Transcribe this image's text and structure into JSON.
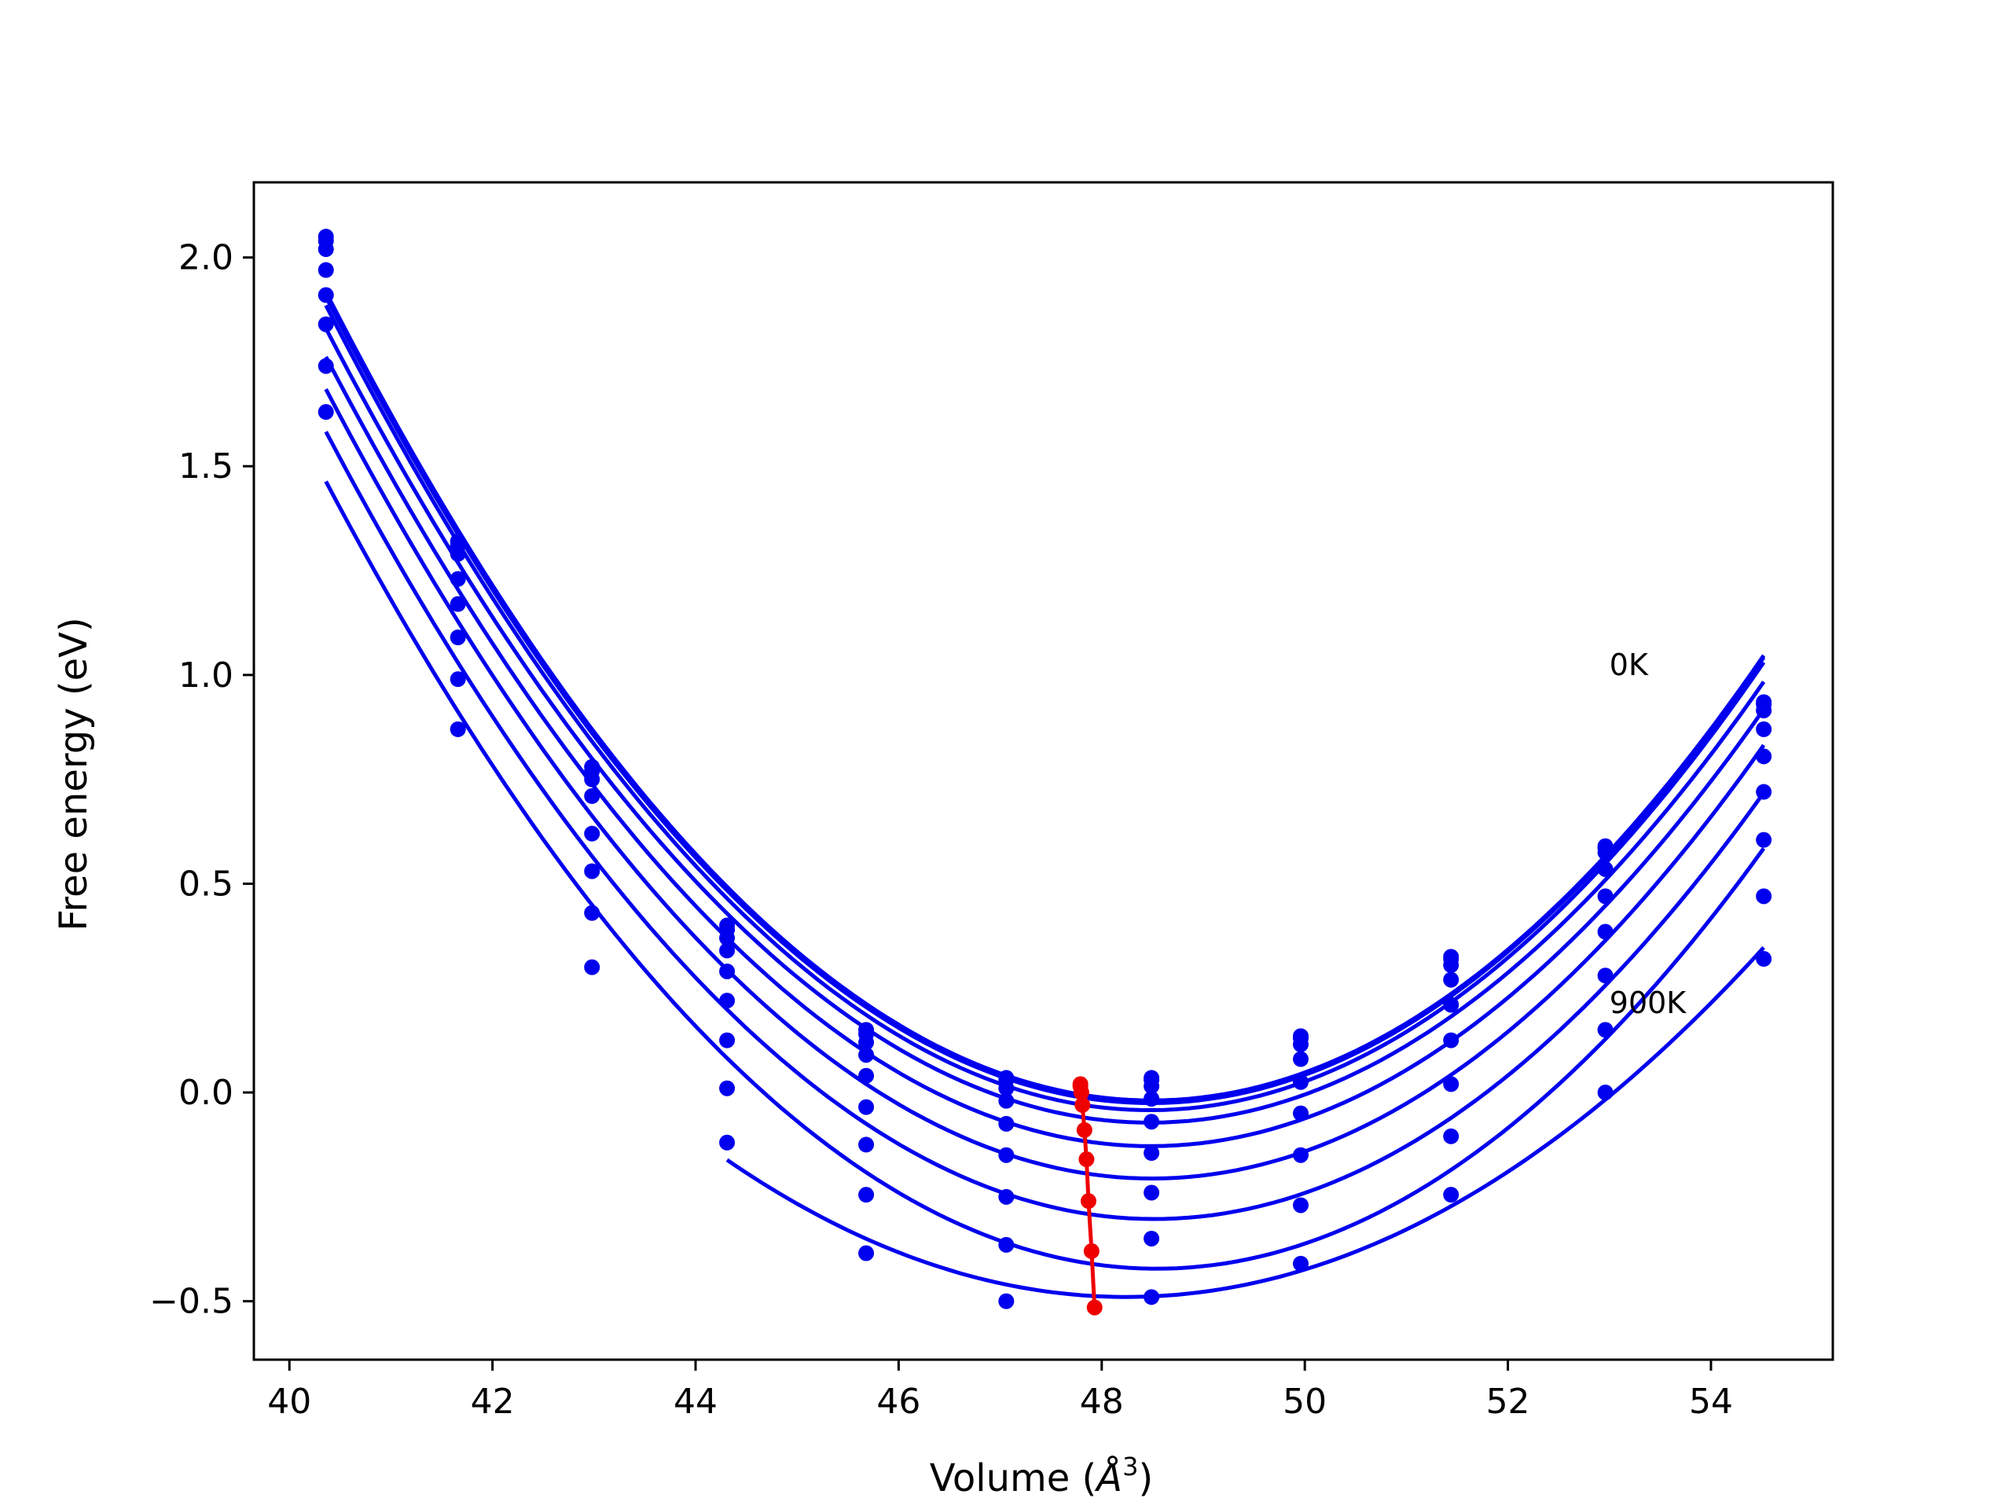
{
  "chart_data": {
    "type": "line",
    "xlabel_prefix": "Volume (",
    "xlabel_unit": "Å",
    "xlabel_sup": "3",
    "xlabel_suffix": ")",
    "ylabel": "Free energy (eV)",
    "xlim": [
      39.65,
      55.2
    ],
    "ylim": [
      -0.64,
      2.18
    ],
    "xticks": [
      40,
      42,
      44,
      46,
      48,
      50,
      52,
      54
    ],
    "yticks": [
      -0.5,
      0.0,
      0.5,
      1.0,
      1.5,
      2.0
    ],
    "xtick_labels": [
      "40",
      "42",
      "44",
      "46",
      "48",
      "50",
      "52",
      "54"
    ],
    "ytick_labels": [
      "−0.5",
      "0.0",
      "0.5",
      "1.0",
      "1.5",
      "2.0"
    ],
    "grid": false,
    "colors": {
      "curves": "#0000ee",
      "minima": "#ee0000"
    },
    "volumes": [
      40.36,
      41.66,
      42.98,
      44.31,
      45.68,
      47.06,
      48.49,
      49.96,
      51.44,
      52.96,
      54.52
    ],
    "annotations": [
      {
        "text": "0K",
        "x": 53.0,
        "y": 1.0
      },
      {
        "text": "900K",
        "x": 53.0,
        "y": 0.19
      }
    ],
    "series": [
      {
        "values": [
          2.05,
          1.32,
          0.78,
          0.4,
          0.15,
          0.035,
          0.035,
          0.135,
          0.325,
          0.59,
          0.935
        ],
        "min": [
          47.79,
          0.02
        ]
      },
      {
        "values": [
          2.04,
          1.31,
          0.77,
          0.39,
          0.14,
          0.03,
          0.03,
          0.13,
          0.32,
          0.585,
          0.93
        ],
        "min": [
          47.79,
          0.015
        ]
      },
      {
        "values": [
          2.02,
          1.29,
          0.75,
          0.37,
          0.12,
          0.01,
          0.015,
          0.115,
          0.305,
          0.575,
          0.915
        ],
        "min": [
          47.8,
          0.0
        ]
      },
      {
        "values": [
          1.97,
          1.23,
          0.71,
          0.34,
          0.09,
          -0.02,
          -0.015,
          0.08,
          0.27,
          0.535,
          0.87
        ],
        "min": [
          47.81,
          -0.03
        ]
      },
      {
        "values": [
          1.91,
          1.17,
          0.62,
          0.29,
          0.04,
          -0.075,
          -0.07,
          0.025,
          0.21,
          0.47,
          0.805
        ],
        "min": [
          47.83,
          -0.09
        ]
      },
      {
        "values": [
          1.84,
          1.09,
          0.53,
          0.22,
          -0.035,
          -0.15,
          -0.145,
          -0.05,
          0.125,
          0.385,
          0.72
        ],
        "min": [
          47.85,
          -0.16
        ]
      },
      {
        "values": [
          1.74,
          0.99,
          0.43,
          0.125,
          -0.125,
          -0.25,
          -0.24,
          -0.15,
          0.02,
          0.28,
          0.605
        ],
        "min": [
          47.87,
          -0.26
        ]
      },
      {
        "values": [
          1.63,
          0.87,
          0.3,
          0.01,
          -0.245,
          -0.365,
          -0.35,
          -0.27,
          -0.105,
          0.15,
          0.47
        ],
        "min": [
          47.9,
          -0.38
        ]
      },
      {
        "values": [
          null,
          null,
          null,
          -0.12,
          -0.385,
          -0.5,
          -0.49,
          -0.41,
          -0.245,
          0.0,
          0.32
        ],
        "min": [
          47.93,
          -0.515
        ]
      }
    ]
  }
}
